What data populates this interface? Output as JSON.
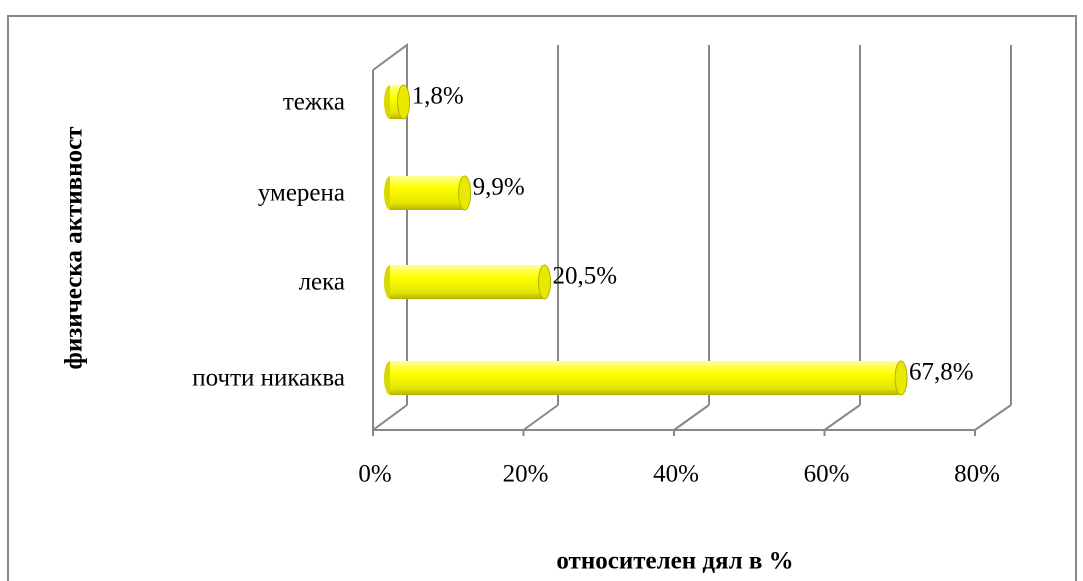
{
  "chart_data": {
    "type": "bar",
    "orientation": "horizontal",
    "categories": [
      "тежка",
      "умерена",
      "лека",
      "почти никаква"
    ],
    "values": [
      1.8,
      9.9,
      20.5,
      67.8
    ],
    "value_labels": [
      "1,8%",
      "9,9%",
      "20,5%",
      "67,8%"
    ],
    "color": "#ffff00",
    "xlim": [
      0,
      80
    ],
    "xticks": [
      {
        "value": 0,
        "label": "0%"
      },
      {
        "value": 20,
        "label": "20%"
      },
      {
        "value": 40,
        "label": "40%"
      },
      {
        "value": 60,
        "label": "60%"
      },
      {
        "value": 80,
        "label": "80%"
      }
    ],
    "xlabel": "относителен дял в %",
    "ylabel": "физическа активност",
    "grid": true
  }
}
